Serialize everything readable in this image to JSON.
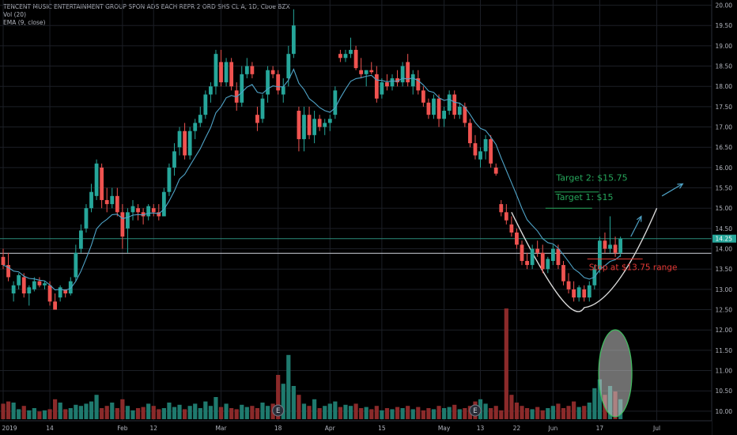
{
  "header": {
    "title": "TENCENT MUSIC ENTERTAINMENT GROUP SPON ADS EACH REPR 2 ORD SHS CL A, 1D, Cboe BZX",
    "vol_indicator": "Vol (20)",
    "ema_indicator": "EMA (9, close)"
  },
  "chart_data": {
    "type": "candlestick",
    "y_axis": {
      "ylim": [
        9.9,
        20.05
      ],
      "ticks": [
        "20.00",
        "19.50",
        "19.00",
        "18.50",
        "18.00",
        "17.50",
        "17.00",
        "16.50",
        "16.00",
        "15.50",
        "15.00",
        "14.50",
        "14.00",
        "13.50",
        "13.00",
        "12.50",
        "12.00",
        "11.50",
        "11.00",
        "10.50",
        "10.00"
      ],
      "last_price_label": "14.25"
    },
    "x_axis": {
      "ticks": [
        {
          "label": "2019",
          "bar": 0
        },
        {
          "label": "14",
          "bar": 9
        },
        {
          "label": "Feb",
          "bar": 23
        },
        {
          "label": "12",
          "bar": 29
        },
        {
          "label": "Mar",
          "bar": 42
        },
        {
          "label": "18",
          "bar": 53
        },
        {
          "label": "Apr",
          "bar": 63
        },
        {
          "label": "15",
          "bar": 73
        },
        {
          "label": "May",
          "bar": 85
        },
        {
          "label": "13",
          "bar": 92
        },
        {
          "label": "22",
          "bar": 99
        },
        {
          "label": "Jun",
          "bar": 106
        },
        {
          "label": "17",
          "bar": 115
        },
        {
          "label": "Jul",
          "bar": 126
        }
      ]
    },
    "candles": [
      [
        13.8,
        14.0,
        13.5,
        13.6
      ],
      [
        13.6,
        13.9,
        13.2,
        13.3
      ],
      [
        12.9,
        13.2,
        12.7,
        13.1
      ],
      [
        13.1,
        13.4,
        13.0,
        13.35
      ],
      [
        13.3,
        13.4,
        12.8,
        12.9
      ],
      [
        12.9,
        13.1,
        12.6,
        13.05
      ],
      [
        13.0,
        13.3,
        12.95,
        13.2
      ],
      [
        13.2,
        13.3,
        13.05,
        13.1
      ],
      [
        13.1,
        13.2,
        13.0,
        13.15
      ],
      [
        13.1,
        13.2,
        12.6,
        12.7
      ],
      [
        12.7,
        12.9,
        12.5,
        12.5
      ],
      [
        12.8,
        13.1,
        12.7,
        13.05
      ],
      [
        13.0,
        13.0,
        12.8,
        12.9
      ],
      [
        12.9,
        13.3,
        12.85,
        13.2
      ],
      [
        13.3,
        14.1,
        13.2,
        13.9
      ],
      [
        14.0,
        14.6,
        13.9,
        14.45
      ],
      [
        14.5,
        15.1,
        14.4,
        15.0
      ],
      [
        15.0,
        15.6,
        14.9,
        15.4
      ],
      [
        15.3,
        16.2,
        15.2,
        16.1
      ],
      [
        16.0,
        16.1,
        15.0,
        15.2
      ],
      [
        15.2,
        15.5,
        14.9,
        15.1
      ],
      [
        15.1,
        15.5,
        15.0,
        15.3
      ],
      [
        15.3,
        15.5,
        14.8,
        14.9
      ],
      [
        14.9,
        15.1,
        14.0,
        14.3
      ],
      [
        14.5,
        15.0,
        13.9,
        14.9
      ],
      [
        14.9,
        15.2,
        14.7,
        15.05
      ],
      [
        15.0,
        15.1,
        14.7,
        14.9
      ],
      [
        14.9,
        15.0,
        14.6,
        14.8
      ],
      [
        14.8,
        15.1,
        14.7,
        15.05
      ],
      [
        15.0,
        15.1,
        14.8,
        14.9
      ],
      [
        14.9,
        15.1,
        14.7,
        14.8
      ],
      [
        14.8,
        15.5,
        14.8,
        15.4
      ],
      [
        15.4,
        16.1,
        15.3,
        16.0
      ],
      [
        16.0,
        16.6,
        15.8,
        16.4
      ],
      [
        16.5,
        17.0,
        16.3,
        16.9
      ],
      [
        16.9,
        17.1,
        16.2,
        16.3
      ],
      [
        16.3,
        17.0,
        16.2,
        16.9
      ],
      [
        16.9,
        17.2,
        16.7,
        17.1
      ],
      [
        17.1,
        17.5,
        17.0,
        17.3
      ],
      [
        17.3,
        17.9,
        17.2,
        17.8
      ],
      [
        17.8,
        18.1,
        17.6,
        18.0
      ],
      [
        18.0,
        18.9,
        17.8,
        18.8
      ],
      [
        18.6,
        18.9,
        18.0,
        18.1
      ],
      [
        18.1,
        18.7,
        18.0,
        18.6
      ],
      [
        18.6,
        18.7,
        17.9,
        18.0
      ],
      [
        17.9,
        18.1,
        17.4,
        17.6
      ],
      [
        17.6,
        18.5,
        17.5,
        18.3
      ],
      [
        18.3,
        18.7,
        18.2,
        18.5
      ],
      [
        18.5,
        18.6,
        18.2,
        18.3
      ],
      [
        17.3,
        17.5,
        16.9,
        17.1
      ],
      [
        17.2,
        17.8,
        17.1,
        17.7
      ],
      [
        17.8,
        18.5,
        17.6,
        18.4
      ],
      [
        18.4,
        18.5,
        18.2,
        18.3
      ],
      [
        18.3,
        18.4,
        17.8,
        17.9
      ],
      [
        17.8,
        18.2,
        17.6,
        18.0
      ],
      [
        18.2,
        19.0,
        18.0,
        18.8
      ],
      [
        18.8,
        19.9,
        18.7,
        19.5
      ],
      [
        17.4,
        17.5,
        16.4,
        16.7
      ],
      [
        16.7,
        17.5,
        16.4,
        17.3
      ],
      [
        17.3,
        17.5,
        16.7,
        16.8
      ],
      [
        16.8,
        17.4,
        16.6,
        17.2
      ],
      [
        17.2,
        17.3,
        16.9,
        17.0
      ],
      [
        17.0,
        17.2,
        16.8,
        17.1
      ],
      [
        17.1,
        17.3,
        16.9,
        17.2
      ],
      [
        17.3,
        18.0,
        17.2,
        17.9
      ],
      [
        18.8,
        18.9,
        18.6,
        18.7
      ],
      [
        18.7,
        18.9,
        18.6,
        18.8
      ],
      [
        18.8,
        19.2,
        18.7,
        18.9
      ],
      [
        18.9,
        19.0,
        18.4,
        18.45
      ],
      [
        18.4,
        18.7,
        18.2,
        18.3
      ],
      [
        18.3,
        18.4,
        18.0,
        18.4
      ],
      [
        18.4,
        18.6,
        18.3,
        18.35
      ],
      [
        18.3,
        18.5,
        17.6,
        17.7
      ],
      [
        17.8,
        18.2,
        17.7,
        18.1
      ],
      [
        18.1,
        18.3,
        17.9,
        18.0
      ],
      [
        18.0,
        18.3,
        17.9,
        18.2
      ],
      [
        18.2,
        18.4,
        18.0,
        18.1
      ],
      [
        18.1,
        18.6,
        18.0,
        18.5
      ],
      [
        18.6,
        18.8,
        18.0,
        18.1
      ],
      [
        18.0,
        18.4,
        17.8,
        18.3
      ],
      [
        18.2,
        18.4,
        17.8,
        17.9
      ],
      [
        17.9,
        18.0,
        17.5,
        17.6
      ],
      [
        17.6,
        17.7,
        17.2,
        17.3
      ],
      [
        17.3,
        17.8,
        17.2,
        17.7
      ],
      [
        17.7,
        17.8,
        17.0,
        17.2
      ],
      [
        17.2,
        17.5,
        17.0,
        17.4
      ],
      [
        17.4,
        17.9,
        17.3,
        17.8
      ],
      [
        17.8,
        17.9,
        17.2,
        17.3
      ],
      [
        17.3,
        17.6,
        17.2,
        17.5
      ],
      [
        17.5,
        17.6,
        17.0,
        17.1
      ],
      [
        17.1,
        17.2,
        16.5,
        16.6
      ],
      [
        16.6,
        16.8,
        16.2,
        16.3
      ],
      [
        16.2,
        16.5,
        16.0,
        16.4
      ],
      [
        16.4,
        16.8,
        16.2,
        16.7
      ],
      [
        16.7,
        16.8,
        16.0,
        16.1
      ],
      [
        16.0,
        16.1,
        15.8,
        15.85
      ],
      [
        15.1,
        15.2,
        14.8,
        14.9
      ],
      [
        14.9,
        15.1,
        14.6,
        14.7
      ],
      [
        14.6,
        14.8,
        14.3,
        14.4
      ],
      [
        14.4,
        14.5,
        14.0,
        14.1
      ],
      [
        14.1,
        14.2,
        13.6,
        13.7
      ],
      [
        13.7,
        13.9,
        13.5,
        13.6
      ],
      [
        13.6,
        14.1,
        13.5,
        14.0
      ],
      [
        14.0,
        14.2,
        13.8,
        13.9
      ],
      [
        13.9,
        14.1,
        13.4,
        13.5
      ],
      [
        13.5,
        13.8,
        13.4,
        13.75
      ],
      [
        13.7,
        14.1,
        13.6,
        14.0
      ],
      [
        14.0,
        14.1,
        13.5,
        13.6
      ],
      [
        13.6,
        13.7,
        13.1,
        13.2
      ],
      [
        13.2,
        13.4,
        12.9,
        13.0
      ],
      [
        13.0,
        13.2,
        12.7,
        12.8
      ],
      [
        12.8,
        13.1,
        12.7,
        13.05
      ],
      [
        13.0,
        13.1,
        12.7,
        12.8
      ],
      [
        12.8,
        13.2,
        12.7,
        13.1
      ],
      [
        13.1,
        13.6,
        13.0,
        13.5
      ],
      [
        13.5,
        14.3,
        13.4,
        14.2
      ],
      [
        14.2,
        14.4,
        13.9,
        14.0
      ],
      [
        14.0,
        14.8,
        13.9,
        14.1
      ],
      [
        14.1,
        14.3,
        13.8,
        13.9
      ],
      [
        13.9,
        14.3,
        13.8,
        14.25
      ]
    ],
    "volume": {
      "ylim": [
        0,
        100
      ],
      "values": [
        14,
        16,
        15,
        9,
        12,
        8,
        10,
        7,
        8,
        9,
        18,
        15,
        9,
        10,
        13,
        12,
        14,
        16,
        22,
        10,
        12,
        15,
        10,
        18,
        12,
        8,
        10,
        11,
        14,
        12,
        9,
        10,
        15,
        11,
        13,
        9,
        12,
        14,
        10,
        16,
        12,
        20,
        11,
        14,
        10,
        9,
        13,
        11,
        12,
        10,
        15,
        12,
        14,
        40,
        32,
        58,
        30,
        22,
        14,
        12,
        18,
        10,
        12,
        14,
        16,
        11,
        13,
        12,
        14,
        10,
        11,
        9,
        12,
        8,
        10,
        9,
        11,
        10,
        12,
        9,
        11,
        8,
        10,
        9,
        12,
        10,
        11,
        13,
        9,
        10,
        12,
        16,
        18,
        14,
        10,
        12,
        8,
        100,
        22,
        15,
        12,
        10,
        9,
        11,
        8,
        10,
        12,
        14,
        10,
        12,
        16,
        11,
        12,
        15,
        28,
        36,
        22,
        30,
        25,
        18
      ],
      "up_color": "#1f7a6e",
      "down_color": "#8b2a2a"
    },
    "ema_label": "EMA (9, close)",
    "horizontal_levels": [
      {
        "value": 13.89,
        "color": "#d1d4dc"
      },
      {
        "value": 14.25,
        "color": "#2a8a7a"
      }
    ],
    "earnings_markers": [
      {
        "bar": 53,
        "label": "E"
      },
      {
        "bar": 91,
        "label": "E"
      }
    ],
    "annotations": {
      "target2": {
        "text": "Target 2: $15.75",
        "value": 15.75,
        "bar": 106,
        "color": "#26a65b"
      },
      "target1": {
        "text": "Target 1: $15",
        "value": 15.0,
        "bar": 105,
        "color": "#26a65b"
      },
      "stop": {
        "text": "Stop at $13.75 range",
        "value": 13.75,
        "bar": 112,
        "color": "#e53935"
      }
    },
    "colors": {
      "up": "#26a69a",
      "down": "#ef5350",
      "ema": "#4fa3c7",
      "grid": "#1c1f26",
      "axis_text": "#b2b5be",
      "cup": "#d9d9d9",
      "arrow": "#4fa3c7",
      "ellipse_stroke": "#3fbf5f",
      "ellipse_fill": "#c9c9c9"
    }
  }
}
